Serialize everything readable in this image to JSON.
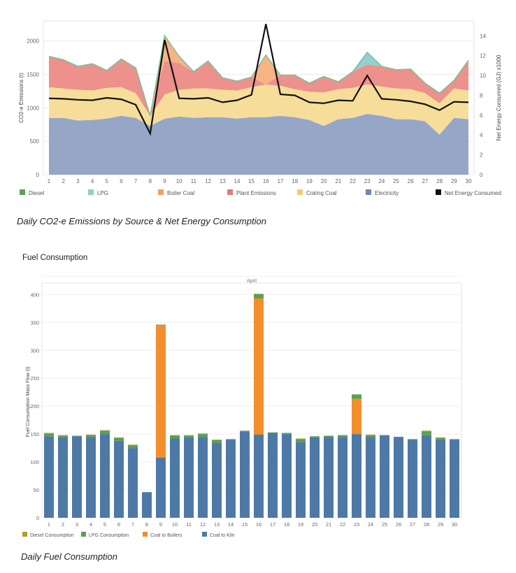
{
  "charts": [
    {
      "type": "area",
      "caption": "Daily CO2-e Emissions by Source & Net Energy Consumption",
      "ylabel": "CO2-e Emissions (t)",
      "y2label": "Net Energy Consumed (GJ) x1000",
      "ylim": [
        0,
        2300
      ],
      "y2lim": [
        0,
        15.5
      ],
      "yticks": [
        0,
        500,
        1000,
        1500,
        2000
      ],
      "y2ticks": [
        0,
        2,
        4,
        6,
        8,
        10,
        12,
        14
      ],
      "x": [
        1,
        2,
        3,
        4,
        5,
        6,
        7,
        8,
        9,
        10,
        11,
        12,
        13,
        14,
        15,
        16,
        17,
        18,
        19,
        20,
        21,
        22,
        23,
        24,
        25,
        26,
        27,
        28,
        29,
        30
      ],
      "stacked": true,
      "series": [
        {
          "name": "Electricity",
          "color": "#8fa1c4",
          "values": [
            850,
            850,
            810,
            820,
            840,
            880,
            850,
            730,
            840,
            870,
            850,
            860,
            860,
            840,
            860,
            860,
            880,
            860,
            820,
            730,
            830,
            850,
            910,
            880,
            830,
            830,
            800,
            600,
            850,
            830
          ]
        },
        {
          "name": "Coking Coal",
          "color": "#f6dc95",
          "values": [
            460,
            440,
            460,
            440,
            460,
            430,
            370,
            150,
            360,
            400,
            440,
            430,
            410,
            420,
            450,
            490,
            450,
            420,
            420,
            500,
            450,
            450,
            440,
            440,
            460,
            450,
            420,
            470,
            440,
            430
          ]
        },
        {
          "name": "Plant Emissions",
          "color": "#eb8b86",
          "values": [
            460,
            430,
            350,
            400,
            260,
            420,
            380,
            0,
            500,
            400,
            250,
            410,
            180,
            140,
            150,
            0,
            160,
            210,
            130,
            240,
            110,
            240,
            300,
            300,
            280,
            300,
            150,
            150,
            120,
            450
          ]
        },
        {
          "name": "Boiler Coal",
          "color": "#f6b07e",
          "values": [
            0,
            0,
            0,
            0,
            0,
            0,
            0,
            0,
            380,
            100,
            0,
            0,
            0,
            0,
            0,
            440,
            0,
            0,
            0,
            0,
            0,
            0,
            0,
            0,
            0,
            0,
            0,
            0,
            0,
            0
          ]
        },
        {
          "name": "LPG",
          "color": "#8ccfcb",
          "values": [
            0,
            0,
            0,
            0,
            0,
            0,
            0,
            0,
            0,
            0,
            0,
            0,
            0,
            0,
            0,
            0,
            0,
            0,
            0,
            0,
            0,
            0,
            180,
            0,
            0,
            0,
            0,
            0,
            0,
            0
          ]
        },
        {
          "name": "Diesel",
          "color": "#6aa662",
          "values": [
            0,
            0,
            0,
            0,
            0,
            0,
            0,
            0,
            0,
            0,
            0,
            0,
            0,
            0,
            0,
            0,
            0,
            0,
            0,
            0,
            0,
            0,
            0,
            0,
            0,
            0,
            0,
            0,
            0,
            0
          ]
        }
      ],
      "line": {
        "name": "Net Energy Consumed",
        "color": "#111111",
        "values": [
          7.7,
          7.65,
          7.55,
          7.5,
          7.75,
          7.6,
          7.05,
          4.15,
          13.6,
          7.7,
          7.65,
          7.75,
          7.3,
          7.5,
          8.05,
          15.2,
          8.1,
          8.0,
          7.3,
          7.2,
          7.5,
          7.45,
          10.0,
          7.65,
          7.55,
          7.4,
          7.1,
          6.5,
          7.35,
          7.3
        ]
      },
      "legend": [
        {
          "label": "Diesel",
          "color": "#5fa05a"
        },
        {
          "label": "LPG",
          "color": "#8ccfcb"
        },
        {
          "label": "Boiler Coal",
          "color": "#f4a15c"
        },
        {
          "label": "Plant Emissions",
          "color": "#e07b78"
        },
        {
          "label": "Coking Coal",
          "color": "#f3cc72"
        },
        {
          "label": "Electricity",
          "color": "#6f86b8"
        },
        {
          "label": "Net Energy Consumed",
          "color": "#111111"
        }
      ],
      "grid": true,
      "legend_placement": "bottom"
    },
    {
      "type": "bar",
      "title": "Fuel Consumption",
      "header": "April",
      "caption": "Daily Fuel Consumption",
      "ylabel": "Fuel Consumption Mass Flow (t)",
      "ylim": [
        0,
        418
      ],
      "yticks": [
        0,
        50,
        100,
        150,
        200,
        250,
        300,
        350,
        400
      ],
      "categories": [
        "1",
        "2",
        "3",
        "4",
        "5",
        "6",
        "7",
        "8",
        "9",
        "10",
        "11",
        "12",
        "13",
        "14",
        "15",
        "16",
        "17",
        "18",
        "19",
        "20",
        "21",
        "22",
        "23",
        "24",
        "25",
        "26",
        "27",
        "28",
        "29",
        "30"
      ],
      "stacked": true,
      "series": [
        {
          "name": "Coal to Kiln",
          "color": "#4e79a7",
          "values": [
            146,
            144,
            146,
            145,
            150,
            138,
            125,
            46,
            108,
            142,
            144,
            145,
            134,
            140,
            154,
            149,
            152,
            150,
            136,
            144,
            145,
            145,
            150,
            145,
            148,
            145,
            140,
            148,
            140,
            140
          ]
        },
        {
          "name": "Coal to Boilers",
          "color": "#f28e2b",
          "values": [
            0,
            0,
            0,
            0,
            0,
            0,
            0,
            0,
            237,
            0,
            0,
            0,
            0,
            0,
            0,
            244,
            0,
            0,
            0,
            0,
            0,
            0,
            63,
            0,
            0,
            0,
            0,
            0,
            0,
            0
          ]
        },
        {
          "name": "LPG Consumption",
          "color": "#59a14f",
          "values": [
            5,
            3,
            1,
            3,
            6,
            5,
            5,
            0,
            1,
            5,
            3,
            5,
            5,
            1,
            2,
            8,
            1,
            2,
            5,
            2,
            2,
            3,
            8,
            3,
            0,
            0,
            1,
            7,
            3,
            1
          ]
        },
        {
          "name": "Diesel Consumption",
          "color": "#b6992d",
          "values": [
            1,
            1,
            0,
            1,
            1,
            1,
            1,
            0,
            0,
            1,
            1,
            1,
            1,
            0,
            0,
            0,
            0,
            0,
            1,
            0,
            0,
            0,
            0,
            1,
            0,
            0,
            0,
            1,
            1,
            0
          ]
        }
      ],
      "legend": [
        {
          "label": "Diesel Consumption",
          "color": "#b6992d"
        },
        {
          "label": "LPG Consumption",
          "color": "#59a14f"
        },
        {
          "label": "Coal to Boilers",
          "color": "#f28e2b"
        },
        {
          "label": "Coal to Kiln",
          "color": "#4e79a7"
        }
      ],
      "grid": true,
      "legend_placement": "bottom"
    }
  ]
}
